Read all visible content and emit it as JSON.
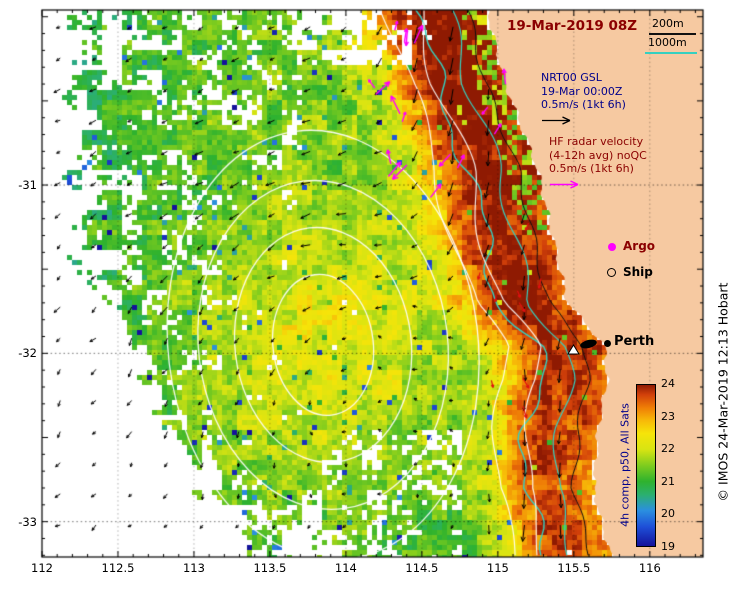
{
  "title": {
    "datetime": "19-Mar-2019 08Z"
  },
  "legend": {
    "contour_200m": "200m",
    "contour_1000m": "1000m",
    "argo_label": "Argo",
    "ship_label": "Ship"
  },
  "annotations": {
    "gsl_line1": "NRT00 GSL",
    "gsl_line2": "19-Mar 00:00Z",
    "gsl_line3": "0.5m/s (1kt 6h)",
    "hf_line1": "HF radar velocity",
    "hf_line2": "(4-12h avg) noQC",
    "hf_line3": "0.5m/s (1kt 6h)"
  },
  "map_labels": {
    "city": "Perth"
  },
  "colorbar": {
    "label": "4h comp, p50, All Sats",
    "ticks": [
      "24",
      "23",
      "22",
      "21",
      "20",
      "19"
    ],
    "min": 19,
    "max": 24,
    "stops": [
      [
        19,
        "#14129b"
      ],
      [
        19.6,
        "#1e4fd8"
      ],
      [
        20.1,
        "#2b8fe0"
      ],
      [
        20.6,
        "#2bb06e"
      ],
      [
        21.0,
        "#2eb22e"
      ],
      [
        21.5,
        "#7ecc1e"
      ],
      [
        22.0,
        "#d8e412"
      ],
      [
        22.5,
        "#f6e409"
      ],
      [
        22.9,
        "#f7b908"
      ],
      [
        23.3,
        "#ef7d06"
      ],
      [
        23.7,
        "#d2400a"
      ],
      [
        24,
        "#8f1a02"
      ]
    ]
  },
  "axes": {
    "x_ticks": [
      "112",
      "112.5",
      "113",
      "113.5",
      "114",
      "114.5",
      "115",
      "115.5",
      "116"
    ],
    "y_ticks": [
      "-31",
      "-32",
      "-33"
    ]
  },
  "credit": "© IMOS 24-Mar-2019 12:13  Hobart",
  "colors": {
    "land": "#f6c9a1",
    "title": "#8b0000",
    "gsl_text": "#00008b",
    "hf_text": "#8b0000",
    "hf_arrow": "#ff00ff",
    "argo_marker": "#ff00ff",
    "vector": "#000000",
    "red_vector": "#e01010",
    "contour_1000m": "#35d0c0",
    "contour_200m": "#111111",
    "sst_contour": "#ffffff"
  },
  "chart_data": {
    "type": "heatmap",
    "title": "19-Mar-2019 08Z",
    "x_range": [
      112,
      116.35
    ],
    "y_range": [
      -33.21,
      -29.96
    ],
    "xticks": [
      112,
      112.5,
      113,
      113.5,
      114,
      114.5,
      115,
      115.5,
      116
    ],
    "yticks": [
      -31,
      -32,
      -33
    ],
    "colorbar": {
      "label": "4h comp, p50, All Sats",
      "range": [
        19,
        24
      ],
      "ticks": [
        19,
        20,
        21,
        22,
        23,
        24
      ]
    },
    "sst_grid": {
      "lons": [
        112.2,
        112.6,
        113.0,
        113.4,
        113.8,
        114.2,
        114.6,
        115.0,
        115.4,
        115.8
      ],
      "lats": [
        -30.2,
        -30.7,
        -31.2,
        -31.7,
        -32.2,
        -32.7,
        -33.1
      ],
      "values_degC": [
        [
          null,
          null,
          21.6,
          22.0,
          22.6,
          23.2,
          24.0,
          null,
          null,
          null
        ],
        [
          null,
          21.0,
          21.4,
          21.9,
          22.4,
          23.0,
          23.9,
          24.0,
          null,
          null
        ],
        [
          20.8,
          21.0,
          21.3,
          21.8,
          22.2,
          22.7,
          23.3,
          24.0,
          null,
          null
        ],
        [
          null,
          20.9,
          21.3,
          21.9,
          22.3,
          22.4,
          22.9,
          23.9,
          23.4,
          null
        ],
        [
          null,
          20.8,
          21.4,
          22.0,
          22.2,
          22.3,
          22.7,
          23.4,
          23.9,
          null
        ],
        [
          null,
          null,
          20.9,
          21.3,
          21.8,
          22.0,
          22.4,
          23.0,
          23.8,
          null
        ],
        [
          null,
          null,
          null,
          21.0,
          21.4,
          21.8,
          22.2,
          22.7,
          23.6,
          null
        ]
      ],
      "no_data": "null = cloud/no-data or land"
    },
    "overlays": {
      "depth_contours_m": [
        200,
        1000
      ],
      "sst_contours_color": "white",
      "geostrophic_vectors": {
        "source": "NRT00 GSL",
        "time": "19-Mar 00:00Z",
        "scale": "0.5m/s (1kt 6h)"
      },
      "hf_radar_vectors": {
        "desc": "HF radar velocity (4-12h avg) noQC",
        "scale": "0.5m/s (1kt 6h)"
      },
      "markers": [
        "Argo",
        "Ship"
      ],
      "city": {
        "name": "Perth",
        "lon": 115.76,
        "lat": -31.95
      }
    }
  }
}
